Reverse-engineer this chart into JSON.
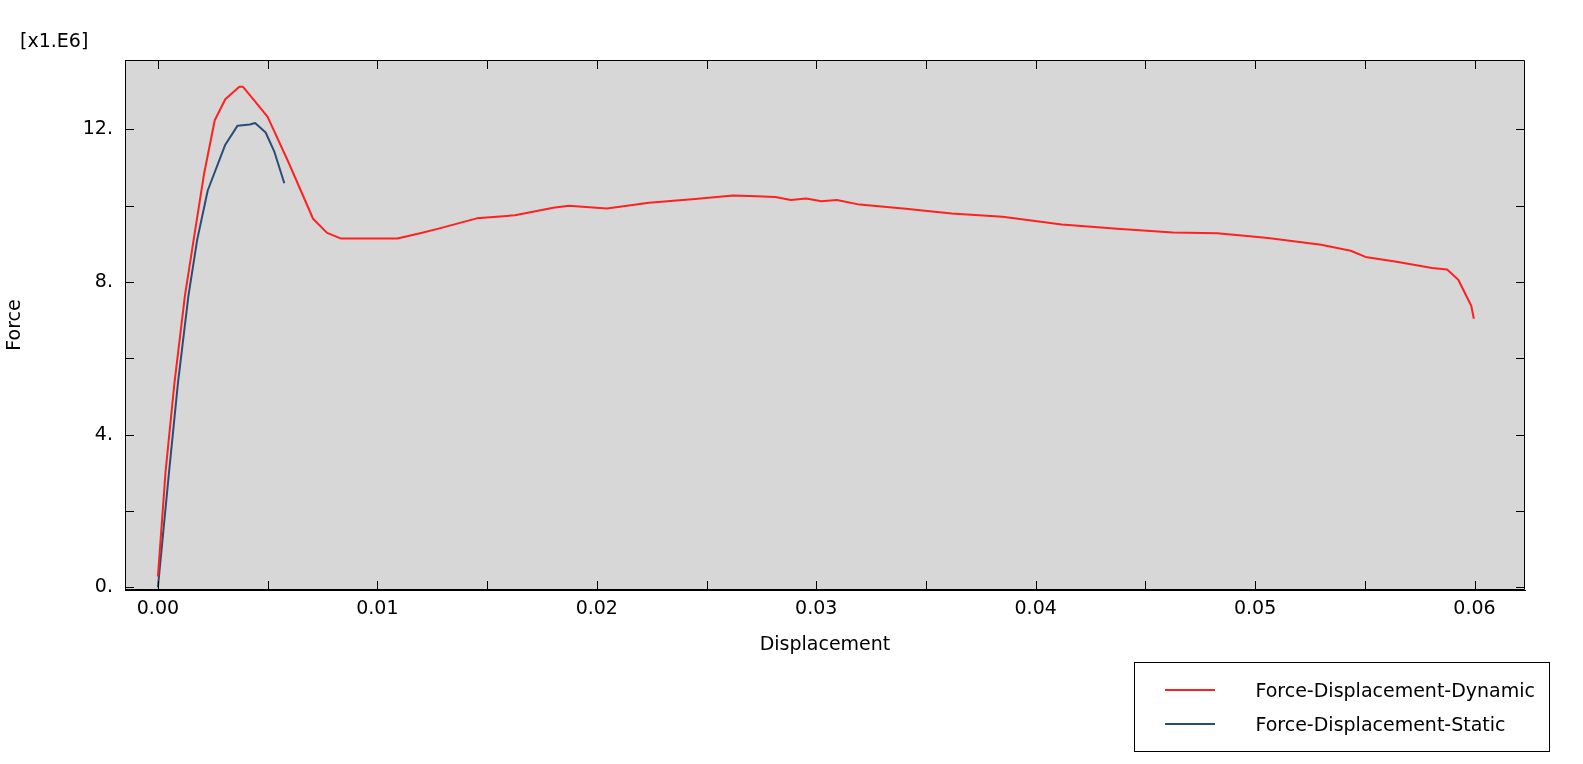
{
  "chart_data": {
    "type": "line",
    "xlabel": "Displacement",
    "ylabel": "Force",
    "annotations": [
      "[x1.E6]"
    ],
    "xlim": [
      -0.0015,
      0.0623
    ],
    "ylim": [
      -0.07,
      13.82
    ],
    "xticks": [
      {
        "value": 0,
        "label": "0.00"
      },
      {
        "value": 0.005,
        "label": null
      },
      {
        "value": 0.01,
        "label": "0.01"
      },
      {
        "value": 0.015,
        "label": null
      },
      {
        "value": 0.02,
        "label": "0.02"
      },
      {
        "value": 0.025,
        "label": null
      },
      {
        "value": 0.03,
        "label": "0.03"
      },
      {
        "value": 0.035,
        "label": null
      },
      {
        "value": 0.04,
        "label": "0.04"
      },
      {
        "value": 0.045,
        "label": null
      },
      {
        "value": 0.05,
        "label": "0.05"
      },
      {
        "value": 0.055,
        "label": null
      },
      {
        "value": 0.06,
        "label": "0.06"
      }
    ],
    "yticks": [
      {
        "value": 0,
        "label": "0."
      },
      {
        "value": 2,
        "label": null
      },
      {
        "value": 4,
        "label": "4."
      },
      {
        "value": 6,
        "label": null
      },
      {
        "value": 8,
        "label": "8."
      },
      {
        "value": 10,
        "label": null
      },
      {
        "value": 12,
        "label": "12."
      }
    ],
    "grid": false,
    "legend": "bottom right",
    "marker": "none",
    "line_style": "solid",
    "series": [
      {
        "name": "Force-Displacement-Dynamic",
        "color": "#ff2020",
        "x": [
          0,
          0.00035,
          0.00075,
          0.00123,
          0.00163,
          0.00211,
          0.00259,
          0.00307,
          0.00371,
          0.00387,
          0.00435,
          0.005,
          0.00595,
          0.00707,
          0.00771,
          0.00835,
          0.01091,
          0.01195,
          0.01279,
          0.01453,
          0.01627,
          0.01802,
          0.01872,
          0.02046,
          0.02238,
          0.02448,
          0.02622,
          0.02814,
          0.02884,
          0.02954,
          0.03024,
          0.03094,
          0.03198,
          0.03408,
          0.03617,
          0.03849,
          0.04119,
          0.04372,
          0.04625,
          0.04828,
          0.05048,
          0.05301,
          0.05436,
          0.05503,
          0.05638,
          0.05807,
          0.05875,
          0.05926,
          0.05985,
          0.05997
        ],
        "values": [
          0.28,
          3.04,
          5.34,
          7.64,
          9.11,
          10.86,
          12.24,
          12.79,
          13.12,
          13.12,
          12.79,
          12.33,
          11.14,
          9.66,
          9.29,
          9.14,
          9.14,
          9.28,
          9.4,
          9.67,
          9.75,
          9.95,
          10.0,
          9.93,
          10.08,
          10.18,
          10.27,
          10.23,
          10.15,
          10.19,
          10.12,
          10.15,
          10.03,
          9.92,
          9.8,
          9.71,
          9.51,
          9.4,
          9.3,
          9.28,
          9.16,
          8.98,
          8.82,
          8.66,
          8.54,
          8.37,
          8.33,
          8.06,
          7.38,
          7.04
        ]
      },
      {
        "name": "Force-Displacement-Static",
        "color": "#2a4d78",
        "x": [
          0,
          0.00051,
          0.00091,
          0.00139,
          0.00179,
          0.00227,
          0.00307,
          0.00363,
          0.00419,
          0.00443,
          0.00491,
          0.00531,
          0.00576
        ],
        "values": [
          0.0,
          3.04,
          5.34,
          7.64,
          9.11,
          10.4,
          11.6,
          12.1,
          12.13,
          12.17,
          11.92,
          11.41,
          10.59
        ]
      }
    ]
  }
}
